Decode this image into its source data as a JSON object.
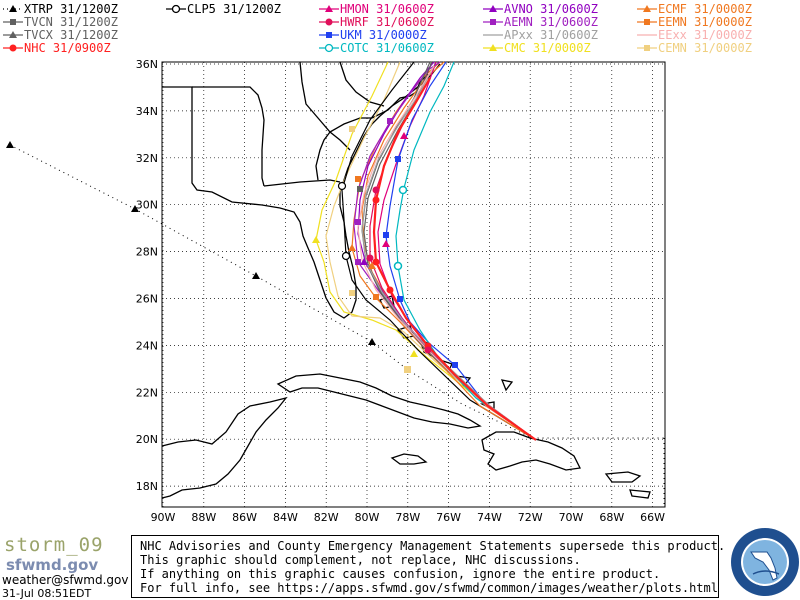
{
  "legend": [
    {
      "label": "XTRP 31/1200Z",
      "color": "#000000",
      "marker": "triangle",
      "line": "dotted"
    },
    {
      "label": "CLP5 31/1200Z",
      "color": "#000000",
      "marker": "circle-open",
      "line": "solid"
    },
    {
      "label": "HMON 31/0600Z",
      "color": "#e0007a",
      "marker": "triangle",
      "line": "solid"
    },
    {
      "label": "AVNO 31/0600Z",
      "color": "#9000c0",
      "marker": "triangle",
      "line": "solid"
    },
    {
      "label": "ECMF 31/0000Z",
      "color": "#f07820",
      "marker": "triangle",
      "line": "solid"
    },
    {
      "label": "TVCN 31/1200Z",
      "color": "#606060",
      "marker": "square",
      "line": "solid"
    },
    {
      "label": "HWRF 31/0600Z",
      "color": "#e0105a",
      "marker": "circle",
      "line": "solid"
    },
    {
      "label": "AEMN 31/0600Z",
      "color": "#a020c0",
      "marker": "square",
      "line": "solid"
    },
    {
      "label": "EEMN 31/0000Z",
      "color": "#f07820",
      "marker": "square",
      "line": "solid"
    },
    {
      "label": "TVCX 31/1200Z",
      "color": "#606060",
      "marker": "triangle",
      "line": "solid"
    },
    {
      "label": "UKM 31/0000Z",
      "color": "#2040f0",
      "marker": "square",
      "line": "solid"
    },
    {
      "label": "APxx 31/0600Z",
      "color": "#a0a0a0",
      "marker": "none",
      "line": "solid"
    },
    {
      "label": "EExx 31/0000Z",
      "color": "#f8b0b0",
      "marker": "none",
      "line": "solid"
    },
    {
      "label": "NHC 31/0900Z",
      "color": "#ff2020",
      "marker": "circle",
      "line": "solid"
    },
    {
      "label": "COTC 31/0600Z",
      "color": "#00b8c0",
      "marker": "circle-open",
      "line": "solid"
    },
    {
      "label": "CMC 31/0000Z",
      "color": "#f0e020",
      "marker": "triangle",
      "line": "solid"
    },
    {
      "label": "CEMN 31/0000Z",
      "color": "#f0d080",
      "marker": "square",
      "line": "solid"
    }
  ],
  "axes": {
    "lat_labels": [
      "36N",
      "34N",
      "32N",
      "30N",
      "28N",
      "26N",
      "24N",
      "22N",
      "20N",
      "18N"
    ],
    "lon_labels": [
      "90W",
      "88W",
      "86W",
      "84W",
      "82W",
      "80W",
      "78W",
      "76W",
      "74W",
      "72W",
      "70W",
      "68W",
      "66W"
    ]
  },
  "footer": {
    "storm_name": "storm_09",
    "org": "sfwmd.gov",
    "email": "weather@sfwmd.gov",
    "timestamp": "31-Jul 08:51EDT",
    "disclaimer_lines": [
      "NHC Advisories and County Emergency Management Statements supersede this product.",
      "This graphic should complement, not replace, NHC discussions.",
      "If anything on this graphic causes confusion, ignore the entire product.",
      "For full info, see  https://apps.sfwmd.gov/sfwmd/common/images/weather/plots.html"
    ],
    "seal_text": "SOUTH FLORIDA WATER MANAGEMENT DISTRICT"
  }
}
